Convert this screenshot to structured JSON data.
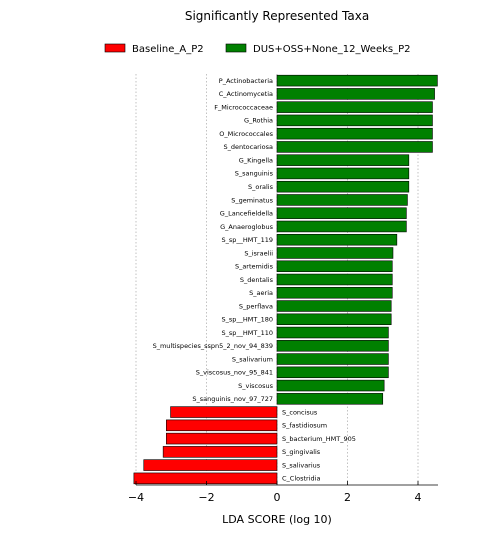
{
  "chart_data": {
    "type": "bar",
    "orientation": "horizontal",
    "title": "Significantly Represented Taxa",
    "xlabel": "LDA SCORE (log 10)",
    "ylabel": "",
    "xlim": [
      -4.1,
      4.6
    ],
    "xticks": [
      -4,
      -2,
      0,
      2,
      4
    ],
    "xtick_labels": [
      "−4",
      "−2",
      "0",
      "2",
      "4"
    ],
    "grid": "vertical dotted gridlines",
    "legend_position": "top",
    "legend": [
      {
        "name": "Baseline_A_P2",
        "color": "#ff0000"
      },
      {
        "name": "DUS+OSS+None_12_Weeks_P2",
        "color": "#008000"
      }
    ],
    "bars": [
      {
        "label": "P_Actinobacteria",
        "value": 4.55,
        "group": "DUS+OSS+None_12_Weeks_P2"
      },
      {
        "label": "C_Actinomycetia",
        "value": 4.47,
        "group": "DUS+OSS+None_12_Weeks_P2"
      },
      {
        "label": "F_Micrococcaceae",
        "value": 4.41,
        "group": "DUS+OSS+None_12_Weeks_P2"
      },
      {
        "label": "G_Rothia",
        "value": 4.41,
        "group": "DUS+OSS+None_12_Weeks_P2"
      },
      {
        "label": "O_Micrococcales",
        "value": 4.41,
        "group": "DUS+OSS+None_12_Weeks_P2"
      },
      {
        "label": "S_dentocariosa",
        "value": 4.41,
        "group": "DUS+OSS+None_12_Weeks_P2"
      },
      {
        "label": "G_Kingella",
        "value": 3.74,
        "group": "DUS+OSS+None_12_Weeks_P2"
      },
      {
        "label": "S_sanguinis",
        "value": 3.74,
        "group": "DUS+OSS+None_12_Weeks_P2"
      },
      {
        "label": "S_oralis",
        "value": 3.74,
        "group": "DUS+OSS+None_12_Weeks_P2"
      },
      {
        "label": "S_geminatus",
        "value": 3.7,
        "group": "DUS+OSS+None_12_Weeks_P2"
      },
      {
        "label": "G_Lancefieldella",
        "value": 3.67,
        "group": "DUS+OSS+None_12_Weeks_P2"
      },
      {
        "label": "G_Anaeroglobus",
        "value": 3.67,
        "group": "DUS+OSS+None_12_Weeks_P2"
      },
      {
        "label": "S_sp__HMT_119",
        "value": 3.4,
        "group": "DUS+OSS+None_12_Weeks_P2"
      },
      {
        "label": "S_israelii",
        "value": 3.29,
        "group": "DUS+OSS+None_12_Weeks_P2"
      },
      {
        "label": "S_artemidis",
        "value": 3.27,
        "group": "DUS+OSS+None_12_Weeks_P2"
      },
      {
        "label": "S_dentalis",
        "value": 3.27,
        "group": "DUS+OSS+None_12_Weeks_P2"
      },
      {
        "label": "S_aeria",
        "value": 3.27,
        "group": "DUS+OSS+None_12_Weeks_P2"
      },
      {
        "label": "S_perflava",
        "value": 3.24,
        "group": "DUS+OSS+None_12_Weeks_P2"
      },
      {
        "label": "S_sp__HMT_180",
        "value": 3.24,
        "group": "DUS+OSS+None_12_Weeks_P2"
      },
      {
        "label": "S_sp__HMT_110",
        "value": 3.16,
        "group": "DUS+OSS+None_12_Weeks_P2"
      },
      {
        "label": "S_multispecies_sspn5_2_nov_94_839",
        "value": 3.16,
        "group": "DUS+OSS+None_12_Weeks_P2"
      },
      {
        "label": "S_salivarium",
        "value": 3.16,
        "group": "DUS+OSS+None_12_Weeks_P2"
      },
      {
        "label": "S_viscosus_nov_95_841",
        "value": 3.16,
        "group": "DUS+OSS+None_12_Weeks_P2"
      },
      {
        "label": "S_viscosus",
        "value": 3.04,
        "group": "DUS+OSS+None_12_Weeks_P2"
      },
      {
        "label": "S_sanguinis_nov_97_727",
        "value": 3.0,
        "group": "DUS+OSS+None_12_Weeks_P2"
      },
      {
        "label": "S_concisus",
        "value": -3.02,
        "group": "Baseline_A_P2"
      },
      {
        "label": "S_fastidiosum",
        "value": -3.14,
        "group": "Baseline_A_P2"
      },
      {
        "label": "S_bacterium_HMT_905",
        "value": -3.14,
        "group": "Baseline_A_P2"
      },
      {
        "label": "S_gingivalis",
        "value": -3.23,
        "group": "Baseline_A_P2"
      },
      {
        "label": "S_salivarius",
        "value": -3.78,
        "group": "Baseline_A_P2"
      },
      {
        "label": "C_Clostridia",
        "value": -4.06,
        "group": "Baseline_A_P2"
      }
    ]
  }
}
